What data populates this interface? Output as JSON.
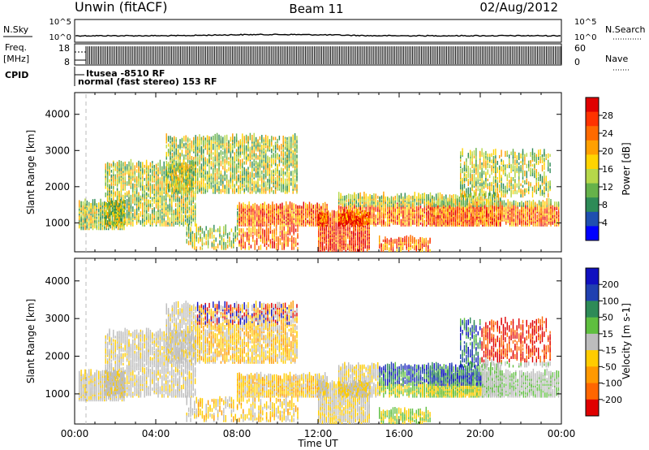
{
  "header": {
    "station": "Unwin (fitACF)",
    "beam": "Beam 11",
    "date": "02/Aug/2012"
  },
  "top_panels": {
    "nsky_label": "N.Sky",
    "nsearch_label": "N.Search",
    "freq_label_1": "Freq.",
    "freq_label_2": "[MHz]",
    "nave_label": "Nave",
    "cpid_label": "CPID",
    "noise_ticks": [
      "10^5",
      "10^0"
    ],
    "freq_ticks": [
      "18",
      "8"
    ],
    "nave_ticks": [
      "60",
      "0"
    ],
    "cpid_line_1": "Itusea -8510 RF",
    "cpid_line_2": "normal (fast stereo) 153 RF"
  },
  "colors": {
    "power": [
      "#0000ff",
      "#1f4fb0",
      "#2e8b57",
      "#66b24a",
      "#b6d84a",
      "#ffd400",
      "#ffa000",
      "#ff6a00",
      "#ff3300",
      "#e00000"
    ],
    "velocity": [
      "#1010c0",
      "#2040b0",
      "#2e8b57",
      "#5fbf3f",
      "#bdbdbd",
      "#ffcc00",
      "#ff9900",
      "#ff6600",
      "#e00000"
    ]
  },
  "chart_data": [
    {
      "type": "heatmap",
      "name": "power",
      "ylabel": "Slant Range [km]",
      "x_ticks": [
        "00:00",
        "04:00",
        "08:00",
        "12:00",
        "16:00",
        "20:00",
        "00:00"
      ],
      "y_ticks": [
        1000,
        2000,
        3000,
        4000
      ],
      "ylim": [
        200,
        4600
      ],
      "colorbar_label": "Power [dB]",
      "colorbar_ticks": [
        4,
        8,
        12,
        16,
        20,
        24,
        28
      ],
      "clim": [
        0,
        30
      ]
    },
    {
      "type": "heatmap",
      "name": "velocity",
      "ylabel": "Slant Range [km]",
      "xlabel": "Time UT",
      "x_ticks": [
        "00:00",
        "04:00",
        "08:00",
        "12:00",
        "16:00",
        "20:00",
        "00:00"
      ],
      "y_ticks": [
        1000,
        2000,
        3000,
        4000
      ],
      "ylim": [
        200,
        4600
      ],
      "colorbar_label": "Velocity [m s-1]",
      "colorbar_ticks": [
        200,
        100,
        50,
        15,
        -15,
        -50,
        -100,
        -200
      ]
    }
  ]
}
